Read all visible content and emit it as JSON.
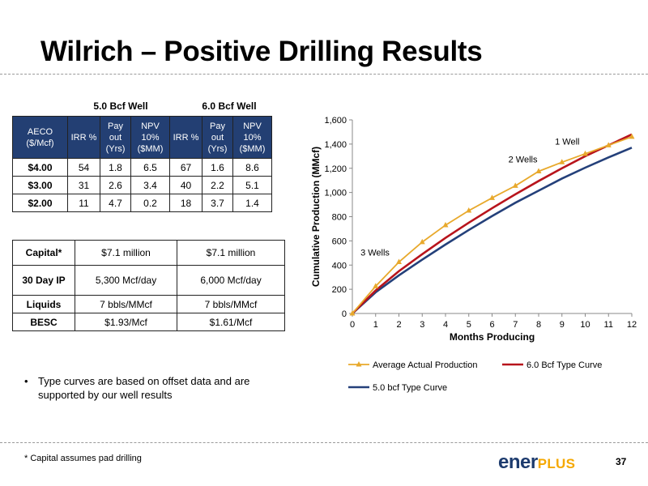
{
  "title": "Wilrich – Positive Drilling Results",
  "table_groups": [
    "5.0 Bcf Well",
    "6.0 Bcf Well"
  ],
  "economics_table": {
    "headers": [
      "AECO ($/Mcf)",
      "IRR %",
      "Pay out (Yrs)",
      "NPV 10% ($MM)",
      "IRR %",
      "Pay out (Yrs)",
      "NPV 10% ($MM)"
    ],
    "rows": [
      [
        "$4.00",
        "54",
        "1.8",
        "6.5",
        "67",
        "1.6",
        "8.6"
      ],
      [
        "$3.00",
        "31",
        "2.6",
        "3.4",
        "40",
        "2.2",
        "5.1"
      ],
      [
        "$2.00",
        "11",
        "4.7",
        "0.2",
        "18",
        "3.7",
        "1.4"
      ]
    ]
  },
  "well_table": {
    "rows": [
      {
        "label": "Capital*",
        "v1": "$7.1 million",
        "v2": "$7.1 million"
      },
      {
        "label": "30 Day IP",
        "v1": "5,300 Mcf/day",
        "v2": "6,000 Mcf/day"
      },
      {
        "label": "Liquids",
        "v1": "7 bbls/MMcf",
        "v2": "7 bbls/MMcf"
      },
      {
        "label": "BESC",
        "v1": "$1.93/Mcf",
        "v2": "$1.61/Mcf"
      }
    ]
  },
  "bullet": "Type curves are based on offset data and are supported by our well results",
  "footnote": "* Capital assumes pad drilling",
  "logo": {
    "main": "ener",
    "accent": "PLUS"
  },
  "page_number": "37",
  "chart_data": {
    "type": "line",
    "xlabel": "Months Producing",
    "ylabel": "Cumulative Production (MMcf)",
    "xlim": [
      0,
      12
    ],
    "ylim": [
      0,
      1600
    ],
    "xticks": [
      0,
      1,
      2,
      3,
      4,
      5,
      6,
      7,
      8,
      9,
      10,
      11,
      12
    ],
    "yticks": [
      0,
      200,
      400,
      600,
      800,
      1000,
      1200,
      1400,
      1600
    ],
    "ytick_labels": [
      "0",
      "200",
      "400",
      "600",
      "800",
      "1,000",
      "1,200",
      "1,400",
      "1,600"
    ],
    "grid": false,
    "legend_position": "bottom",
    "series": [
      {
        "name": "Average Actual Production",
        "color": "#e8a92c",
        "marker": "triangle",
        "x": [
          0,
          1,
          2,
          3,
          4,
          5,
          6,
          7,
          8,
          9,
          10,
          11,
          12
        ],
        "y": [
          0,
          225,
          425,
          590,
          730,
          850,
          955,
          1055,
          1175,
          1250,
          1320,
          1390,
          1460
        ]
      },
      {
        "name": "6.0 Bcf Type Curve",
        "color": "#b8141c",
        "marker": "none",
        "x": [
          0,
          1,
          2,
          3,
          4,
          5,
          6,
          7,
          8,
          9,
          10,
          11,
          12
        ],
        "y": [
          0,
          190,
          350,
          490,
          625,
          750,
          870,
          985,
          1095,
          1200,
          1300,
          1390,
          1480
        ]
      },
      {
        "name": "5.0 bcf Type Curve",
        "color": "#24407a",
        "marker": "none",
        "x": [
          0,
          1,
          2,
          3,
          4,
          5,
          6,
          7,
          8,
          9,
          10,
          11,
          12
        ],
        "y": [
          0,
          175,
          315,
          445,
          570,
          690,
          805,
          915,
          1015,
          1115,
          1205,
          1290,
          1370
        ]
      }
    ],
    "annotations": [
      {
        "text": "3 Wells",
        "x": 0.35,
        "y": 480
      },
      {
        "text": "2 Wells",
        "x": 6.7,
        "y": 1250
      },
      {
        "text": "1 Well",
        "x": 8.7,
        "y": 1395
      }
    ]
  }
}
